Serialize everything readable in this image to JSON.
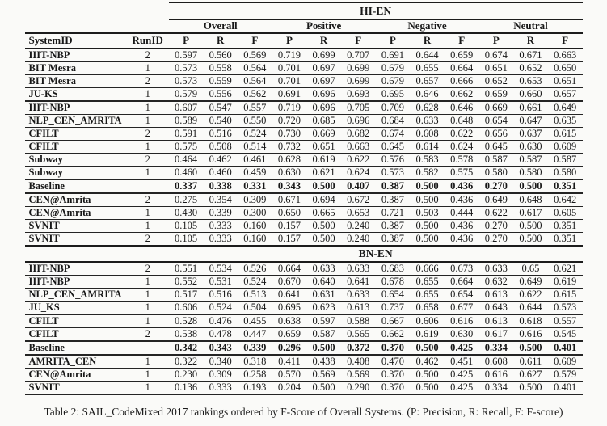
{
  "table": {
    "caption": "Table 2: SAIL_CodeMixed 2017 rankings ordered by F-Score of Overall Systems. (P: Precision, R: Recall, F: F-score)",
    "col1": "SystemID",
    "col2": "RunID",
    "groups": [
      "Overall",
      "Positive",
      "Negative",
      "Neutral"
    ],
    "subcols": [
      "P",
      "R",
      "F"
    ],
    "sections": [
      {
        "name": "HI-EN",
        "rows": [
          {
            "system": "IIIT-NBP",
            "run": "2",
            "bold": false,
            "thick": false,
            "values": [
              "0.597",
              "0.560",
              "0.569",
              "0.719",
              "0.699",
              "0.707",
              "0.691",
              "0.644",
              "0.659",
              "0.674",
              "0.671",
              "0.663"
            ]
          },
          {
            "system": "BIT Mesra",
            "run": "1",
            "bold": false,
            "thick": false,
            "values": [
              "0.573",
              "0.558",
              "0.564",
              "0.701",
              "0.697",
              "0.699",
              "0.679",
              "0.655",
              "0.664",
              "0.651",
              "0.652",
              "0.650"
            ]
          },
          {
            "system": "BIT Mesra",
            "run": "2",
            "bold": false,
            "thick": false,
            "values": [
              "0.573",
              "0.559",
              "0.564",
              "0.701",
              "0.697",
              "0.699",
              "0.679",
              "0.657",
              "0.666",
              "0.652",
              "0.653",
              "0.651"
            ]
          },
          {
            "system": "JU-KS",
            "run": "1",
            "bold": false,
            "thick": true,
            "values": [
              "0.579",
              "0.556",
              "0.562",
              "0.691",
              "0.696",
              "0.693",
              "0.695",
              "0.646",
              "0.662",
              "0.659",
              "0.660",
              "0.657"
            ]
          },
          {
            "system": "IIIT-NBP",
            "run": "1",
            "bold": false,
            "thick": false,
            "values": [
              "0.607",
              "0.547",
              "0.557",
              "0.719",
              "0.696",
              "0.705",
              "0.709",
              "0.628",
              "0.646",
              "0.669",
              "0.661",
              "0.649"
            ]
          },
          {
            "system": "NLP_CEN_AMRITA",
            "run": "1",
            "bold": false,
            "thick": false,
            "values": [
              "0.589",
              "0.540",
              "0.550",
              "0.720",
              "0.685",
              "0.696",
              "0.684",
              "0.633",
              "0.648",
              "0.654",
              "0.647",
              "0.635"
            ]
          },
          {
            "system": "CFILT",
            "run": "2",
            "bold": false,
            "thick": false,
            "values": [
              "0.591",
              "0.516",
              "0.524",
              "0.730",
              "0.669",
              "0.682",
              "0.674",
              "0.608",
              "0.622",
              "0.656",
              "0.637",
              "0.615"
            ]
          },
          {
            "system": "CFILT",
            "run": "1",
            "bold": false,
            "thick": false,
            "values": [
              "0.575",
              "0.508",
              "0.514",
              "0.732",
              "0.651",
              "0.663",
              "0.645",
              "0.614",
              "0.624",
              "0.645",
              "0.630",
              "0.609"
            ]
          },
          {
            "system": "Subway",
            "run": "2",
            "bold": false,
            "thick": false,
            "values": [
              "0.464",
              "0.462",
              "0.461",
              "0.628",
              "0.619",
              "0.622",
              "0.576",
              "0.583",
              "0.578",
              "0.587",
              "0.587",
              "0.587"
            ]
          },
          {
            "system": "Subway",
            "run": "1",
            "bold": false,
            "thick": true,
            "values": [
              "0.460",
              "0.460",
              "0.459",
              "0.630",
              "0.621",
              "0.624",
              "0.573",
              "0.582",
              "0.575",
              "0.580",
              "0.580",
              "0.580"
            ]
          },
          {
            "system": "Baseline",
            "run": "",
            "bold": true,
            "thick": true,
            "values": [
              "0.337",
              "0.338",
              "0.331",
              "0.343",
              "0.500",
              "0.407",
              "0.387",
              "0.500",
              "0.436",
              "0.270",
              "0.500",
              "0.351"
            ]
          },
          {
            "system": "CEN@Amrita",
            "run": "2",
            "bold": false,
            "thick": false,
            "values": [
              "0.275",
              "0.354",
              "0.309",
              "0.671",
              "0.694",
              "0.672",
              "0.387",
              "0.500",
              "0.436",
              "0.649",
              "0.648",
              "0.642"
            ]
          },
          {
            "system": "CEN@Amrita",
            "run": "1",
            "bold": false,
            "thick": false,
            "values": [
              "0.430",
              "0.339",
              "0.300",
              "0.650",
              "0.665",
              "0.653",
              "0.721",
              "0.503",
              "0.444",
              "0.622",
              "0.617",
              "0.605"
            ]
          },
          {
            "system": "SVNIT",
            "run": "1",
            "bold": false,
            "thick": false,
            "values": [
              "0.105",
              "0.333",
              "0.160",
              "0.157",
              "0.500",
              "0.240",
              "0.387",
              "0.500",
              "0.436",
              "0.270",
              "0.500",
              "0.351"
            ]
          },
          {
            "system": "SVNIT",
            "run": "2",
            "bold": false,
            "thick": false,
            "values": [
              "0.105",
              "0.333",
              "0.160",
              "0.157",
              "0.500",
              "0.240",
              "0.387",
              "0.500",
              "0.436",
              "0.270",
              "0.500",
              "0.351"
            ]
          }
        ]
      },
      {
        "name": "BN-EN",
        "rows": [
          {
            "system": "IIIT-NBP",
            "run": "2",
            "bold": false,
            "thick": false,
            "values": [
              "0.551",
              "0.534",
              "0.526",
              "0.664",
              "0.633",
              "0.633",
              "0.683",
              "0.666",
              "0.673",
              "0.633",
              "0.65",
              "0.621"
            ]
          },
          {
            "system": "IIIT-NBP",
            "run": "1",
            "bold": false,
            "thick": false,
            "values": [
              "0.552",
              "0.531",
              "0.524",
              "0.670",
              "0.640",
              "0.641",
              "0.678",
              "0.655",
              "0.664",
              "0.632",
              "0.649",
              "0.619"
            ]
          },
          {
            "system": "NLP_CEN_AMRITA",
            "run": "1",
            "bold": false,
            "thick": false,
            "values": [
              "0.517",
              "0.516",
              "0.513",
              "0.641",
              "0.631",
              "0.633",
              "0.654",
              "0.655",
              "0.654",
              "0.613",
              "0.622",
              "0.615"
            ]
          },
          {
            "system": "JU_KS",
            "run": "1",
            "bold": false,
            "thick": true,
            "values": [
              "0.606",
              "0.524",
              "0.504",
              "0.695",
              "0.623",
              "0.613",
              "0.737",
              "0.658",
              "0.677",
              "0.643",
              "0.644",
              "0.573"
            ]
          },
          {
            "system": "CFILT",
            "run": "1",
            "bold": false,
            "thick": false,
            "values": [
              "0.528",
              "0.476",
              "0.455",
              "0.638",
              "0.597",
              "0.588",
              "0.667",
              "0.606",
              "0.616",
              "0.613",
              "0.618",
              "0.557"
            ]
          },
          {
            "system": "CFILT",
            "run": "2",
            "bold": false,
            "thick": true,
            "values": [
              "0.538",
              "0.478",
              "0.447",
              "0.659",
              "0.587",
              "0.565",
              "0.662",
              "0.619",
              "0.630",
              "0.617",
              "0.616",
              "0.545"
            ]
          },
          {
            "system": "Baseline",
            "run": "",
            "bold": true,
            "thick": true,
            "values": [
              "0.342",
              "0.343",
              "0.339",
              "0.296",
              "0.500",
              "0.372",
              "0.370",
              "0.500",
              "0.425",
              "0.334",
              "0.500",
              "0.401"
            ]
          },
          {
            "system": "AMRITA_CEN",
            "run": "1",
            "bold": false,
            "thick": false,
            "values": [
              "0.322",
              "0.340",
              "0.318",
              "0.411",
              "0.438",
              "0.408",
              "0.470",
              "0.462",
              "0.451",
              "0.608",
              "0.611",
              "0.609"
            ]
          },
          {
            "system": "CEN@Amrita",
            "run": "1",
            "bold": false,
            "thick": false,
            "values": [
              "0.230",
              "0.309",
              "0.258",
              "0.570",
              "0.569",
              "0.569",
              "0.370",
              "0.500",
              "0.425",
              "0.616",
              "0.627",
              "0.579"
            ]
          },
          {
            "system": "SVNIT",
            "run": "1",
            "bold": false,
            "thick": true,
            "values": [
              "0.136",
              "0.333",
              "0.193",
              "0.204",
              "0.500",
              "0.290",
              "0.370",
              "0.500",
              "0.425",
              "0.334",
              "0.500",
              "0.401"
            ]
          }
        ]
      }
    ]
  }
}
